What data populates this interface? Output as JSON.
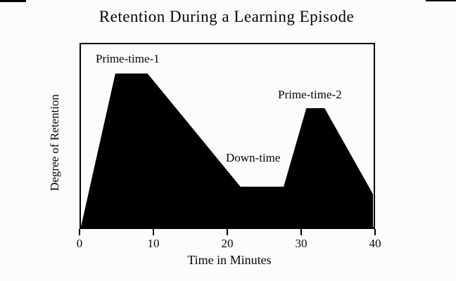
{
  "chart_data": {
    "type": "area",
    "title": "Retention During a Learning Episode",
    "xlabel": "Time in Minutes",
    "ylabel": "Degree of Retention",
    "x": [
      0,
      4.7,
      9.1,
      21.8,
      27.7,
      30.8,
      33.3,
      39.9
    ],
    "y": [
      0,
      0.84,
      0.84,
      0.22,
      0.22,
      0.65,
      0.65,
      0.18
    ],
    "xlim": [
      0,
      40
    ],
    "ylim": [
      0,
      1
    ],
    "x_ticks": [
      "0",
      "10",
      "20",
      "30",
      "40"
    ],
    "y_ticks": [],
    "grid": false,
    "legend": false,
    "fill_color": "#000000",
    "background_color": "#fcfdfa",
    "annotations": [
      {
        "text": "Prime-time-1",
        "x": 2.1,
        "y": 0.93
      },
      {
        "text": "Down-time",
        "x": 19.9,
        "y": 0.37
      },
      {
        "text": "Prime-time-2",
        "x": 26.9,
        "y": 0.72
      }
    ]
  }
}
